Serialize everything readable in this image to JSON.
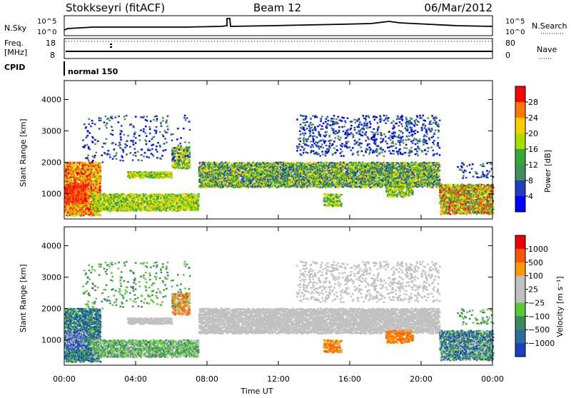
{
  "header": {
    "title": "Stokkseyri (fitACF)",
    "beam": "Beam 12",
    "date": "06/Mar/2012"
  },
  "panels": {
    "nsky": {
      "label": "N.Sky",
      "right_label": "N.Search",
      "ticks_left": [
        "10^5",
        "10^0"
      ],
      "ticks_right": [
        "10^5",
        "10^0"
      ]
    },
    "freq": {
      "label_line1": "Freq.",
      "label_line2": "[MHz]",
      "ticks_left": [
        "18",
        "8"
      ],
      "ticks_right": [
        "80",
        "0"
      ],
      "right_label": "Nave"
    },
    "cpid": {
      "label": "CPID",
      "mode_text": "normal 150"
    }
  },
  "chart_data": [
    {
      "type": "heatmap",
      "name": "power",
      "ylabel": "Slant Range [km]",
      "yticks": [
        "4000",
        "3000",
        "2000",
        "1000"
      ],
      "ylim": [
        200,
        4600
      ],
      "colorbar_label": "Power [dB]",
      "colorbar_ticks": [
        "28",
        "24",
        "20",
        "16",
        "12",
        "8",
        "4"
      ],
      "colors": [
        "#0000ff",
        "#1f3fbf",
        "#3f8f5f",
        "#33aa33",
        "#aadd00",
        "#ffcc00",
        "#ff7700",
        "#ff0000"
      ]
    },
    {
      "type": "heatmap",
      "name": "velocity",
      "ylabel": "Slant Range [km]",
      "yticks": [
        "4000",
        "3000",
        "2000",
        "1000"
      ],
      "ylim": [
        200,
        4600
      ],
      "colorbar_label": "Velocity [m s⁻¹]",
      "colorbar_ticks": [
        "1000",
        "500",
        "100",
        "25",
        "−25",
        "−100",
        "−500",
        "−1000"
      ],
      "colors": [
        "#1a3fbf",
        "#2a6ea0",
        "#3a8a5a",
        "#55cc33",
        "#c0c0c0",
        "#c0c0c0",
        "#ff9900",
        "#ff5500",
        "#ee0000"
      ]
    }
  ],
  "xaxis": {
    "label": "Time UT",
    "ticks": [
      "00:00",
      "04:00",
      "08:00",
      "12:00",
      "16:00",
      "20:00",
      "00:00"
    ]
  }
}
